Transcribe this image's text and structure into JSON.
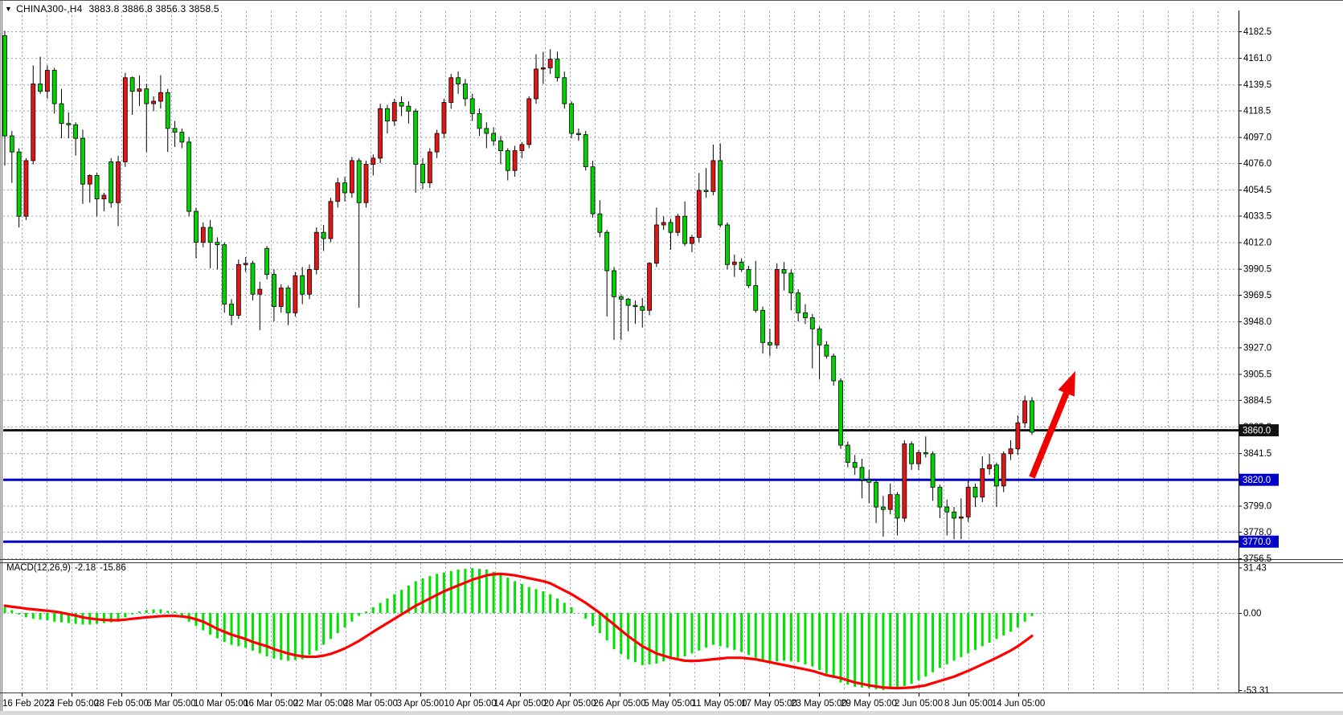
{
  "window": {
    "title_symbol": "CHINA300-,H4",
    "title_ohlc": "3883.8 3886.8 3856.3 3858.5",
    "marker_icon": "▼"
  },
  "macd_panel": {
    "label": "MACD(12,26,9)",
    "macd_value": "-2.18",
    "signal_value": "-15.86",
    "axis_ticks": [
      31.43,
      0.0,
      -53.31
    ],
    "axis_tick_labels": [
      "31.43",
      "0.00",
      "-53.31"
    ]
  },
  "price_axis": {
    "tick_labels": [
      "4182.5",
      "4161.0",
      "4139.5",
      "4118.5",
      "4097.0",
      "4076.0",
      "4054.5",
      "4033.5",
      "4012.0",
      "3990.5",
      "3969.5",
      "3948.0",
      "3927.0",
      "3905.5",
      "3884.5",
      "3863.0",
      "3841.5",
      "3820.0",
      "3799.0",
      "3778.0",
      "3756.5"
    ],
    "tick_values": [
      4182.5,
      4161.0,
      4139.5,
      4118.5,
      4097.0,
      4076.0,
      4054.5,
      4033.5,
      4012.0,
      3990.5,
      3969.5,
      3948.0,
      3927.0,
      3905.5,
      3884.5,
      3863.0,
      3841.5,
      3820.0,
      3799.0,
      3778.0,
      3756.5
    ]
  },
  "time_axis": {
    "labels": [
      "16 Feb 2023",
      "22 Feb 05:00",
      "28 Feb 05:00",
      "6 Mar 05:00",
      "10 Mar 05:00",
      "16 Mar 05:00",
      "22 Mar 05:00",
      "28 Mar 05:00",
      "3 Apr 05:00",
      "10 Apr 05:00",
      "14 Apr 05:00",
      "20 Apr 05:00",
      "26 Apr 05:00",
      "5 May 05:00",
      "11 May 05:00",
      "17 May 05:00",
      "23 May 05:00",
      "29 May 05:00",
      "2 Jun 05:00",
      "8 Jun 05:00",
      "14 Jun 05:00"
    ]
  },
  "levels": [
    {
      "name": "resistance-line",
      "price": 3860.0,
      "label": "3860.0",
      "color": "#111111"
    },
    {
      "name": "support-line-1",
      "price": 3820.0,
      "label": "3820.0",
      "color": "#0000C8"
    },
    {
      "name": "support-line-2",
      "price": 3770.0,
      "label": "3770.0",
      "color": "#0000C8"
    }
  ],
  "annotation_arrow": {
    "from_price": 3822,
    "to_price": 3908,
    "color": "#F20000"
  },
  "colors": {
    "background": "#ffffff",
    "grid": "#96a1b4",
    "bull_candle": "#E31616",
    "bear_candle": "#00D400",
    "candle_outline": "#000000",
    "wick": "#000000",
    "macd_histogram": "#00E300",
    "macd_signal": "#FF0000",
    "level_black": "#111111",
    "level_blue": "#0000C8",
    "axis_text": "#000000"
  },
  "chart_data": {
    "type": "candlestick",
    "symbol": "CHINA300",
    "timeframe": "H4",
    "title": "CHINA300-,H4  3883.8 3886.8 3856.3 3858.5",
    "price_axis_range": [
      3756.5,
      4182.5
    ],
    "grid": "dashed",
    "indicator": {
      "name": "MACD",
      "params": [
        12,
        26,
        9
      ],
      "current_macd": -2.18,
      "current_signal": -15.86,
      "axis_range": [
        -53.31,
        31.43
      ]
    },
    "x_first_label": "16 Feb 2023",
    "x_last_label": "14 Jun 05:00",
    "candles_ohlc": [
      [
        4179,
        4183,
        4074,
        4098
      ],
      [
        4098,
        4102,
        4060,
        4085
      ],
      [
        4085,
        4088,
        4024,
        4033
      ],
      [
        4033,
        4080,
        4030,
        4078
      ],
      [
        4078,
        4155,
        4075,
        4140
      ],
      [
        4140,
        4162,
        4132,
        4134
      ],
      [
        4134,
        4155,
        4128,
        4151
      ],
      [
        4151,
        4153,
        4116,
        4124
      ],
      [
        4124,
        4136,
        4096,
        4108
      ],
      [
        4108,
        4117,
        4096,
        4107
      ],
      [
        4107,
        4109,
        4082,
        4096
      ],
      [
        4096,
        4103,
        4043,
        4059
      ],
      [
        4059,
        4067,
        4044,
        4066
      ],
      [
        4066,
        4068,
        4033,
        4047
      ],
      [
        4047,
        4052,
        4037,
        4050
      ],
      [
        4077,
        4080,
        4040,
        4044
      ],
      [
        4044,
        4082,
        4025,
        4077
      ],
      [
        4077,
        4149,
        4073,
        4145
      ],
      [
        4145,
        4146,
        4115,
        4134
      ],
      [
        4134,
        4147,
        4122,
        4136
      ],
      [
        4136,
        4140,
        4085,
        4124
      ],
      [
        4124,
        4130,
        4118,
        4126
      ],
      [
        4126,
        4147,
        4120,
        4133
      ],
      [
        4133,
        4136,
        4085,
        4104
      ],
      [
        4104,
        4110,
        4089,
        4101
      ],
      [
        4101,
        4104,
        4088,
        4093
      ],
      [
        4093,
        4097,
        4033,
        4037
      ],
      [
        4037,
        4040,
        3999,
        4012
      ],
      [
        4012,
        4028,
        4008,
        4024
      ],
      [
        4024,
        4030,
        3991,
        4012
      ],
      [
        4012,
        4016,
        3990,
        4010
      ],
      [
        4010,
        4012,
        3955,
        3962
      ],
      [
        3962,
        3966,
        3945,
        3953
      ],
      [
        3953,
        3998,
        3950,
        3994
      ],
      [
        3994,
        4000,
        3988,
        3995
      ],
      [
        3995,
        3997,
        3965,
        3970
      ],
      [
        3970,
        3980,
        3941,
        3974
      ],
      [
        4007,
        4009,
        3982,
        3986
      ],
      [
        3986,
        3990,
        3948,
        3960
      ],
      [
        3960,
        3978,
        3955,
        3975
      ],
      [
        3975,
        3977,
        3945,
        3955
      ],
      [
        3955,
        3988,
        3952,
        3985
      ],
      [
        3985,
        3992,
        3962,
        3970
      ],
      [
        3970,
        3994,
        3966,
        3990
      ],
      [
        3990,
        4024,
        3986,
        4020
      ],
      [
        4020,
        4026,
        4005,
        4015
      ],
      [
        4015,
        4048,
        4012,
        4045
      ],
      [
        4045,
        4064,
        4040,
        4060
      ],
      [
        4060,
        4065,
        4045,
        4052
      ],
      [
        4052,
        4081,
        4048,
        4078
      ],
      [
        4078,
        4080,
        3959,
        4044
      ],
      [
        4044,
        4078,
        4040,
        4075
      ],
      [
        4075,
        4083,
        4066,
        4080
      ],
      [
        4080,
        4124,
        4076,
        4120
      ],
      [
        4120,
        4123,
        4100,
        4110
      ],
      [
        4110,
        4128,
        4106,
        4125
      ],
      [
        4125,
        4130,
        4114,
        4122
      ],
      [
        4122,
        4126,
        4108,
        4118
      ],
      [
        4118,
        4120,
        4052,
        4075
      ],
      [
        4075,
        4080,
        4055,
        4060
      ],
      [
        4060,
        4088,
        4056,
        4085
      ],
      [
        4085,
        4103,
        4080,
        4100
      ],
      [
        4100,
        4128,
        4096,
        4125
      ],
      [
        4125,
        4148,
        4120,
        4145
      ],
      [
        4145,
        4150,
        4132,
        4140
      ],
      [
        4140,
        4144,
        4122,
        4128
      ],
      [
        4128,
        4132,
        4110,
        4116
      ],
      [
        4116,
        4120,
        4098,
        4104
      ],
      [
        4104,
        4109,
        4088,
        4100
      ],
      [
        4100,
        4105,
        4090,
        4094
      ],
      [
        4094,
        4098,
        4075,
        4086
      ],
      [
        4086,
        4088,
        4062,
        4070
      ],
      [
        4070,
        4090,
        4065,
        4086
      ],
      [
        4086,
        4093,
        4080,
        4091
      ],
      [
        4091,
        4130,
        4088,
        4128
      ],
      [
        4128,
        4164,
        4124,
        4152
      ],
      [
        4152,
        4166,
        4140,
        4153
      ],
      [
        4153,
        4168,
        4148,
        4160
      ],
      [
        4160,
        4166,
        4142,
        4145
      ],
      [
        4145,
        4150,
        4120,
        4124
      ],
      [
        4124,
        4126,
        4096,
        4100
      ],
      [
        4100,
        4104,
        4094,
        4099
      ],
      [
        4099,
        4102,
        4070,
        4073
      ],
      [
        4073,
        4078,
        4032,
        4035
      ],
      [
        4035,
        4046,
        4016,
        4020
      ],
      [
        4020,
        4022,
        3952,
        3989
      ],
      [
        3989,
        3992,
        3933,
        3968
      ],
      [
        3968,
        3970,
        3933,
        3966
      ],
      [
        3966,
        3967,
        3940,
        3961
      ],
      [
        3961,
        3965,
        3946,
        3960
      ],
      [
        3960,
        3967,
        3943,
        3957
      ],
      [
        3957,
        3996,
        3953,
        3995
      ],
      [
        3995,
        4040,
        3992,
        4026
      ],
      [
        4026,
        4033,
        4022,
        4028
      ],
      [
        4028,
        4031,
        4006,
        4020
      ],
      [
        4020,
        4035,
        4017,
        4033
      ],
      [
        4033,
        4045,
        4009,
        4011
      ],
      [
        4011,
        4018,
        4004,
        4016
      ],
      [
        4016,
        4068,
        4012,
        4054
      ],
      [
        4054,
        4072,
        4048,
        4053
      ],
      [
        4053,
        4091,
        4050,
        4078
      ],
      [
        4078,
        4092,
        4024,
        4026
      ],
      [
        4026,
        4028,
        3990,
        3994
      ],
      [
        3994,
        4002,
        3984,
        3996
      ],
      [
        3996,
        3999,
        3988,
        3990
      ],
      [
        3990,
        3993,
        3975,
        3977
      ],
      [
        3977,
        3997,
        3955,
        3957
      ],
      [
        3957,
        3960,
        3922,
        3931
      ],
      [
        3931,
        3942,
        3920,
        3929
      ],
      [
        3929,
        3995,
        3926,
        3990
      ],
      [
        3990,
        3996,
        3973,
        3987
      ],
      [
        3987,
        3990,
        3957,
        3971
      ],
      [
        3971,
        3974,
        3948,
        3955
      ],
      [
        3955,
        3962,
        3946,
        3951
      ],
      [
        3951,
        3954,
        3910,
        3942
      ],
      [
        3942,
        3944,
        3901,
        3929
      ],
      [
        3929,
        3932,
        3918,
        3920
      ],
      [
        3920,
        3922,
        3896,
        3900
      ],
      [
        3900,
        3902,
        3845,
        3848
      ],
      [
        3848,
        3851,
        3830,
        3834
      ],
      [
        3834,
        3840,
        3824,
        3830
      ],
      [
        3830,
        3837,
        3805,
        3820
      ],
      [
        3820,
        3828,
        3801,
        3818
      ],
      [
        3818,
        3820,
        3785,
        3798
      ],
      [
        3798,
        3807,
        3774,
        3796
      ],
      [
        3796,
        3817,
        3792,
        3808
      ],
      [
        3808,
        3810,
        3775,
        3789
      ],
      [
        3789,
        3852,
        3786,
        3849
      ],
      [
        3849,
        3851,
        3828,
        3833
      ],
      [
        3833,
        3844,
        3828,
        3842
      ],
      [
        3842,
        3855,
        3838,
        3841
      ],
      [
        3841,
        3843,
        3803,
        3814
      ],
      [
        3814,
        3816,
        3789,
        3798
      ],
      [
        3798,
        3804,
        3775,
        3794
      ],
      [
        3794,
        3798,
        3772,
        3789
      ],
      [
        3789,
        3805,
        3772,
        3790
      ],
      [
        3790,
        3820,
        3786,
        3814
      ],
      [
        3814,
        3817,
        3798,
        3806
      ],
      [
        3806,
        3839,
        3802,
        3829
      ],
      [
        3829,
        3841,
        3824,
        3832
      ],
      [
        3832,
        3834,
        3798,
        3815
      ],
      [
        3815,
        3843,
        3810,
        3841
      ],
      [
        3841,
        3852,
        3836,
        3845
      ],
      [
        3845,
        3872,
        3840,
        3866
      ],
      [
        3866,
        3888,
        3862,
        3883.8
      ],
      [
        3883.8,
        3886.8,
        3856.3,
        3858.5
      ]
    ],
    "macd_histogram": [
      4,
      2,
      -1,
      -3,
      -4,
      -4.5,
      -5,
      -6,
      -6.5,
      -7,
      -7.5,
      -8,
      -8,
      -7.5,
      -7,
      -6.5,
      -6,
      -3,
      -1,
      1,
      2,
      2.5,
      2.5,
      1.5,
      1,
      -2,
      -6,
      -9,
      -12,
      -15,
      -17.5,
      -20,
      -22,
      -23,
      -24,
      -26,
      -28,
      -30,
      -31.5,
      -32.5,
      -33,
      -32.5,
      -32,
      -29,
      -26,
      -22,
      -18,
      -14,
      -10,
      -6,
      -2,
      1,
      4,
      7,
      10,
      13,
      16,
      19,
      22,
      24,
      25.5,
      27,
      28,
      29,
      30,
      30.5,
      31,
      30.5,
      30,
      28.5,
      27,
      24.5,
      22,
      20,
      18,
      16.5,
      15,
      13,
      10,
      7,
      4,
      0,
      -4,
      -9,
      -14,
      -19,
      -25,
      -28.5,
      -32,
      -34,
      -36,
      -35.5,
      -35,
      -33.5,
      -32,
      -31,
      -30,
      -28,
      -26,
      -24,
      -22,
      -23,
      -24,
      -25.5,
      -27,
      -29,
      -31,
      -32.5,
      -34,
      -33.5,
      -33,
      -33.5,
      -34,
      -35.5,
      -37,
      -39.5,
      -42,
      -45,
      -48,
      -49.5,
      -51,
      -51.5,
      -52,
      -52.7,
      -53.31,
      -52.7,
      -52,
      -50.5,
      -49,
      -46.5,
      -44,
      -41,
      -38,
      -35.5,
      -33,
      -30.5,
      -28,
      -25.5,
      -23,
      -20.5,
      -18,
      -15.5,
      -13,
      -10,
      -6,
      -2.18
    ],
    "macd_signal": [
      5,
      4.3,
      3.7,
      3,
      2.5,
      2,
      1.5,
      1,
      0.2,
      -0.8,
      -1.8,
      -3,
      -3.8,
      -4.4,
      -4.8,
      -5,
      -5,
      -4.6,
      -4,
      -3.5,
      -3,
      -2.6,
      -2.2,
      -2,
      -2,
      -2.4,
      -3,
      -4.4,
      -6,
      -8.4,
      -11,
      -13,
      -15,
      -16.5,
      -18,
      -20,
      -21.5,
      -23,
      -25,
      -26.5,
      -28,
      -29.2,
      -30,
      -30.3,
      -30.2,
      -29.5,
      -28.3,
      -26.5,
      -24.5,
      -22,
      -19.3,
      -16.2,
      -13,
      -10,
      -7,
      -4,
      -1,
      2,
      5,
      7.5,
      10,
      12.5,
      15,
      17,
      19,
      21,
      23,
      24.5,
      26,
      26.8,
      27,
      26.6,
      26,
      25,
      24,
      23,
      22,
      20.5,
      18,
      15.5,
      13,
      10,
      7,
      3.5,
      0,
      -4,
      -8,
      -12,
      -16,
      -19.5,
      -23,
      -25.5,
      -28,
      -29.5,
      -31,
      -32,
      -33,
      -33.2,
      -33,
      -32.5,
      -32,
      -31.5,
      -31,
      -31,
      -31,
      -31.5,
      -32,
      -33,
      -34,
      -35,
      -36,
      -37,
      -38,
      -39,
      -40,
      -41.5,
      -43,
      -44,
      -45,
      -46.5,
      -48,
      -49,
      -50,
      -50.8,
      -51.5,
      -51.8,
      -52,
      -51.8,
      -51.5,
      -50.8,
      -50,
      -48.5,
      -47,
      -45.5,
      -44,
      -42,
      -40,
      -37.8,
      -35.5,
      -33.3,
      -31,
      -28.5,
      -26,
      -23,
      -19.5,
      -15.86
    ]
  }
}
